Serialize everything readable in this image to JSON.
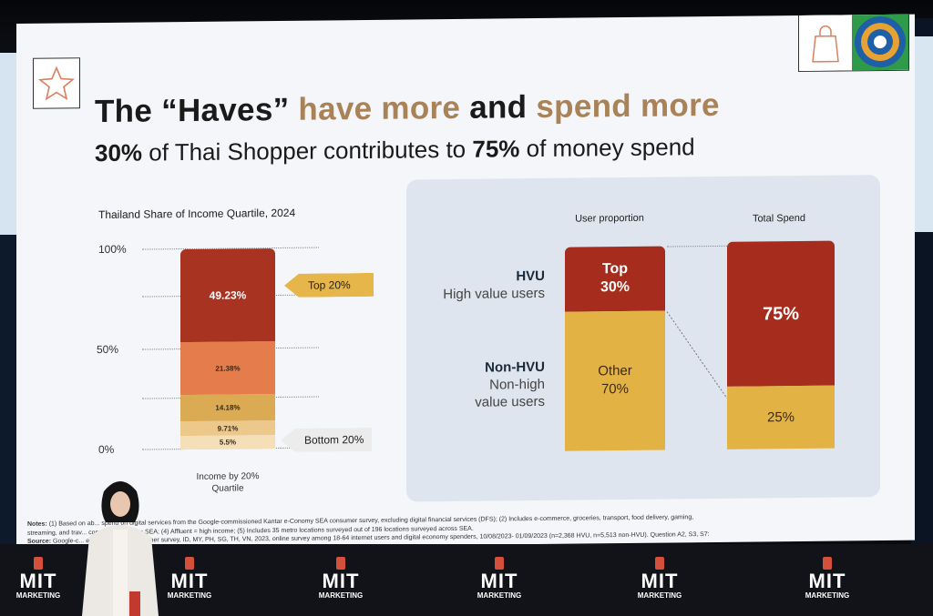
{
  "slide": {
    "title_part1": "The “Haves”",
    "title_part2": " have more ",
    "title_part3": "and",
    "title_part4": " spend more",
    "subtitle_pct1": "30%",
    "subtitle_mid": " of Thai Shopper contributes to ",
    "subtitle_pct2": "75%",
    "subtitle_end": " of money spend"
  },
  "chart_data": [
    {
      "type": "bar",
      "title": "Thailand Share of Income Quartile, 2024",
      "xlabel": "Income by 20% Quartile",
      "yticks": [
        "100%",
        "50%",
        "0%"
      ],
      "ylim": [
        0,
        100
      ],
      "stacked": true,
      "segments": [
        {
          "label": "5.5%",
          "value": 5.5,
          "color": "#f4dfb8"
        },
        {
          "label": "9.71%",
          "value": 9.71,
          "color": "#ecc98a"
        },
        {
          "label": "14.18%",
          "value": 14.18,
          "color": "#dbab54"
        },
        {
          "label": "21.38%",
          "value": 21.38,
          "color": "#e47c4c"
        },
        {
          "label": "49.23%",
          "value": 49.23,
          "color": "#a93321"
        }
      ],
      "callouts": {
        "top": "Top 20%",
        "bottom": "Bottom 20%"
      }
    },
    {
      "type": "bar",
      "stacked": true,
      "categories": [
        "User proportion",
        "Total Spend"
      ],
      "series": [
        {
          "name": "HVU",
          "values": [
            30,
            75
          ],
          "labels": [
            "Top\n30%",
            "75%"
          ],
          "color": "#a62d1e"
        },
        {
          "name": "Non-HVU",
          "values": [
            70,
            25
          ],
          "labels": [
            "Other\n70%",
            "25%"
          ],
          "color": "#e3b245"
        }
      ],
      "row_labels": {
        "hvu_title": "HVU",
        "hvu_sub": "High value users",
        "nonhvu_title": "Non-HVU",
        "nonhvu_sub1": "Non-high",
        "nonhvu_sub2": "value users"
      }
    }
  ],
  "notes": {
    "line1_label": "Notes:",
    "line1": " (1) Based on ab... spend on digital services from the Google-commissioned Kantar e-Conomy SEA consumer survey, excluding digital financial services (DFS); (2) Includes e-commerce, groceries, transport, food delivery, gaming,",
    "line2": "streaming, and trav... composition across SEA; (4) Affluent = high income; (5) Includes 35 metro locations surveyed out of 196 locations surveyed across SEA.",
    "line3_label": "Source:",
    "line3": " Google-c... e-Conomy SEA consumer survey, ID, MY, PH, SG, TH, VN, 2023, online survey among 18-64 internet users and digital economy spenders, 10/08/2023- 01/09/2023 (n=2,368 HVU, n=5,513 non-HVU). Question A2, S3, S7:"
  },
  "stage": {
    "logo_big": "MIT",
    "logo_small": "MARKETING"
  },
  "colors": {
    "accent": "#a98257",
    "hvu": "#a62d1e",
    "non_hvu": "#e3b245",
    "callout": "#e6b64a"
  }
}
